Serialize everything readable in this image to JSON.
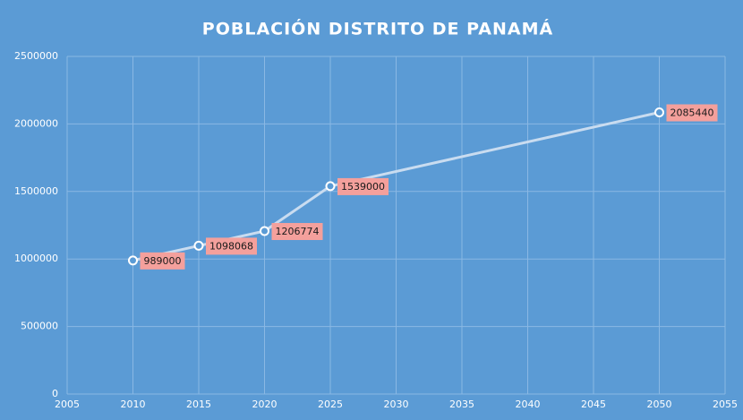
{
  "chart_data": {
    "type": "line",
    "title": "POBLACIÓN DISTRITO  DE PANAMÁ",
    "x": [
      2010,
      2015,
      2020,
      2025,
      2050
    ],
    "values": [
      989000,
      1098068,
      1206774,
      1539000,
      2085440
    ],
    "color": "#c9dcf0",
    "marker_color": "#5b9bd5",
    "label_color": "#f4a09c",
    "xlim": [
      2005,
      2055
    ],
    "xticks": [
      2005,
      2010,
      2015,
      2020,
      2025,
      2030,
      2035,
      2040,
      2045,
      2050,
      2055
    ],
    "ylim": [
      0,
      2500000
    ],
    "yticks": [
      0,
      500000,
      1000000,
      1500000,
      2000000,
      2500000
    ],
    "grid": true
  }
}
